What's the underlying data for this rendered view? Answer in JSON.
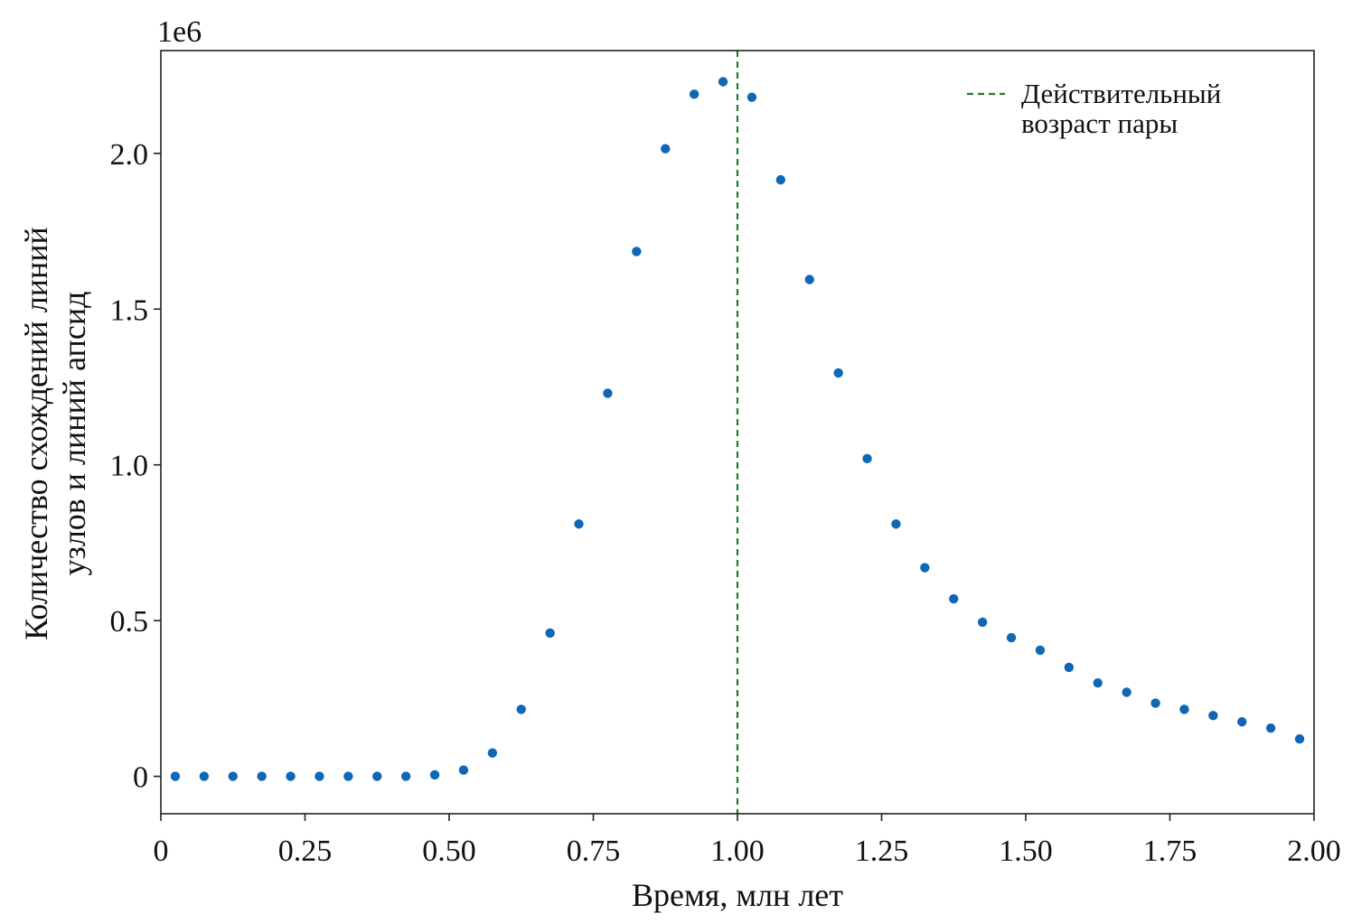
{
  "chart_data": {
    "type": "scatter",
    "xlabel": "Время, млн лет",
    "ylabel_lines": [
      "Количество схождений линий",
      "узлов и линий апсид"
    ],
    "y_offset_label": "1e6",
    "xlim": [
      0,
      2
    ],
    "ylim": [
      -0.12,
      2.33
    ],
    "y_scale_factor": 1000000,
    "xticks": [
      {
        "value": 0,
        "label": "0"
      },
      {
        "value": 0.25,
        "label": "0.25"
      },
      {
        "value": 0.5,
        "label": "0.50"
      },
      {
        "value": 0.75,
        "label": "0.75"
      },
      {
        "value": 1.0,
        "label": "1.00"
      },
      {
        "value": 1.25,
        "label": "1.25"
      },
      {
        "value": 1.5,
        "label": "1.50"
      },
      {
        "value": 1.75,
        "label": "1.75"
      },
      {
        "value": 2.0,
        "label": "2.00"
      }
    ],
    "yticks": [
      {
        "value": 0,
        "label": "0"
      },
      {
        "value": 0.5,
        "label": "0.5"
      },
      {
        "value": 1.0,
        "label": "1.0"
      },
      {
        "value": 1.5,
        "label": "1.5"
      },
      {
        "value": 2.0,
        "label": "2.0"
      }
    ],
    "grid": false,
    "legend_position": "top-right",
    "series": [
      {
        "color": "#0f68b5",
        "marker": "circle",
        "x": [
          0.025,
          0.075,
          0.125,
          0.175,
          0.225,
          0.275,
          0.325,
          0.375,
          0.425,
          0.475,
          0.525,
          0.575,
          0.625,
          0.675,
          0.725,
          0.775,
          0.825,
          0.875,
          0.925,
          0.975,
          1.025,
          1.075,
          1.125,
          1.175,
          1.225,
          1.275,
          1.325,
          1.375,
          1.425,
          1.475,
          1.525,
          1.575,
          1.625,
          1.675,
          1.725,
          1.775,
          1.825,
          1.875,
          1.925,
          1.975
        ],
        "y": [
          0.0,
          0.0,
          0.0,
          0.0,
          0.0,
          0.0,
          0.0,
          0.0,
          0.0,
          0.005,
          0.02,
          0.075,
          0.215,
          0.46,
          0.81,
          1.23,
          1.685,
          2.015,
          2.19,
          2.23,
          2.18,
          1.915,
          1.595,
          1.295,
          1.02,
          0.81,
          0.67,
          0.57,
          0.495,
          0.445,
          0.405,
          0.35,
          0.3,
          0.27,
          0.235,
          0.215,
          0.195,
          0.175,
          0.155,
          0.12
        ]
      }
    ],
    "reference_lines": [
      {
        "x": 1.0,
        "color": "#1f7a2e",
        "style": "dashed",
        "label_lines": [
          "Действительный",
          "возраст пары"
        ]
      }
    ]
  }
}
